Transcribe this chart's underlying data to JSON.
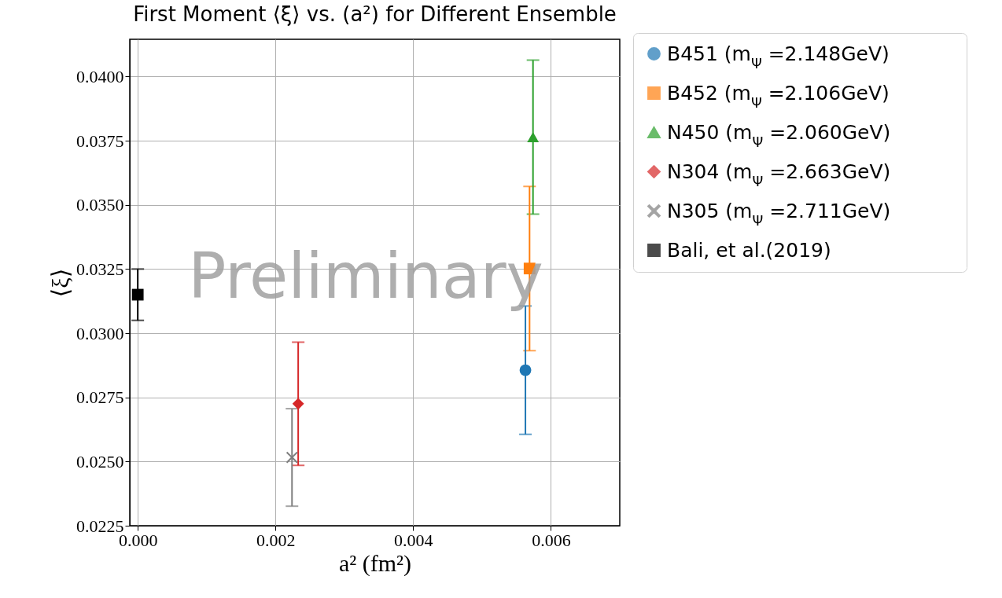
{
  "chart_data": {
    "type": "scatter",
    "title": "First Moment ⟨ξ⟩ vs. (a²) for Different Ensemble",
    "xlabel": "a² (fm²)",
    "ylabel": "⟨ξ⟩",
    "xlim": [
      -0.000116,
      0.007
    ],
    "ylim": [
      0.0225,
      0.04145
    ],
    "xticks": [
      {
        "value": 0,
        "label": "0.000"
      },
      {
        "value": 0.002,
        "label": "0.002"
      },
      {
        "value": 0.004,
        "label": "0.004"
      },
      {
        "value": 0.006,
        "label": "0.006"
      }
    ],
    "yticks": [
      0.0225,
      {
        "value": 0.025,
        "label": "0.0250"
      },
      0.0275,
      {
        "value": 0.03,
        "label": "0.0300"
      },
      0.0325,
      {
        "value": 0.035,
        "label": "0.0350"
      },
      0.0375,
      {
        "value": 0.04,
        "label": "0.0400"
      }
    ],
    "grid": true,
    "legend": "right",
    "annotations": [
      "Preliminary"
    ],
    "series": [
      {
        "name": "B451 (m$_{Ψ}$ =2.148GeV)",
        "color": "#1f77b4",
        "marker": "circle",
        "x": [
          0.00563
        ],
        "values": [
          0.02856
        ],
        "errors": [
          0.0025
        ]
      },
      {
        "name": "B452 (m$_{Ψ}$ =2.106GeV)",
        "color": "#ff7f0e",
        "marker": "square",
        "x": [
          0.00569
        ],
        "values": [
          0.03252
        ],
        "errors": [
          0.0032
        ]
      },
      {
        "name": "N450 (m$_{Ψ}$ =2.060GeV)",
        "color": "#2ca02c",
        "marker": "triangle",
        "x": [
          0.00574
        ],
        "values": [
          0.03764
        ],
        "errors": [
          0.003
        ]
      },
      {
        "name": "N304 (m$_{Ψ}$ =2.663GeV)",
        "color": "#d62728",
        "marker": "diamond",
        "x": [
          0.00233
        ],
        "values": [
          0.02725
        ],
        "errors": [
          0.0024
        ]
      },
      {
        "name": "N305 (m$_{Ψ}$ =2.711GeV)",
        "color": "#7f7f7f",
        "marker": "cross",
        "x": [
          0.00224
        ],
        "values": [
          0.02516
        ],
        "errors": [
          0.0019
        ]
      },
      {
        "name": "Bali, et al.(2019)",
        "color": "#000000",
        "marker": "square",
        "x": [
          0
        ],
        "values": [
          0.0315
        ],
        "errors": [
          0.001
        ]
      }
    ]
  }
}
